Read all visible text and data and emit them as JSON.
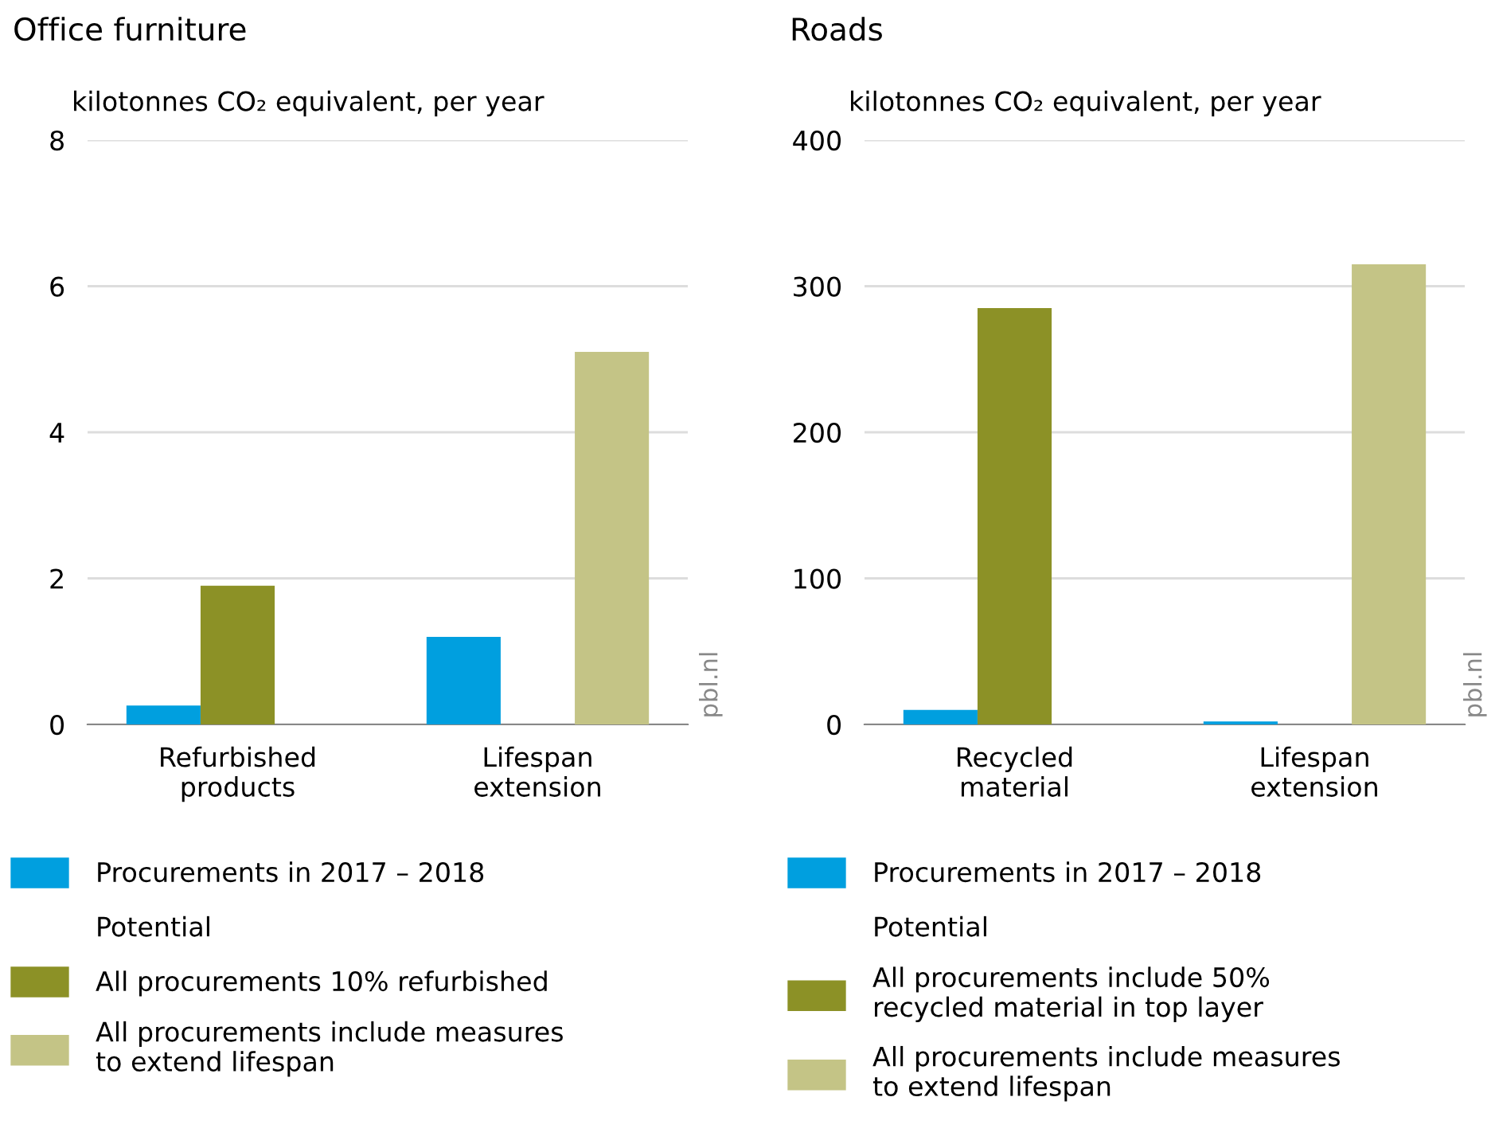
{
  "chart_data": [
    {
      "type": "bar",
      "title": "Office furniture",
      "ylabel": "kilotonnes CO₂ equivalent, per year",
      "categories": [
        "Refurbished\nproducts",
        "Lifespan\nextension"
      ],
      "series": [
        {
          "name": "Procurements in 2017 – 2018",
          "color": "#009fdf",
          "values": [
            0.26,
            1.2
          ]
        },
        {
          "name": "All procurements 10% refurbished",
          "color": "#8c9126",
          "values": [
            1.9,
            null
          ]
        },
        {
          "name": "All procurements include measures\nto extend lifespan",
          "color": "#c4c486",
          "values": [
            null,
            5.1
          ]
        }
      ],
      "ylim": [
        0,
        8
      ],
      "yticks": [
        0,
        2,
        4,
        6,
        8
      ],
      "grid": "y",
      "legend": "bottom",
      "annotations": [
        "Potential",
        "pbl.nl"
      ]
    },
    {
      "type": "bar",
      "title": "Roads",
      "ylabel": "kilotonnes CO₂ equivalent, per year",
      "categories": [
        "Recycled\nmaterial",
        "Lifespan\nextension"
      ],
      "series": [
        {
          "name": "Procurements in 2017 – 2018",
          "color": "#009fdf",
          "values": [
            10,
            2
          ]
        },
        {
          "name": "All procurements include 50%\nrecycled material in top layer",
          "color": "#8c9126",
          "values": [
            285,
            null
          ]
        },
        {
          "name": "All procurements include measures\nto extend lifespan",
          "color": "#c4c486",
          "values": [
            null,
            315
          ]
        }
      ],
      "ylim": [
        0,
        400
      ],
      "yticks": [
        0,
        100,
        200,
        300,
        400
      ],
      "grid": "y",
      "legend": "bottom",
      "annotations": [
        "Potential",
        "pbl.nl"
      ]
    }
  ]
}
